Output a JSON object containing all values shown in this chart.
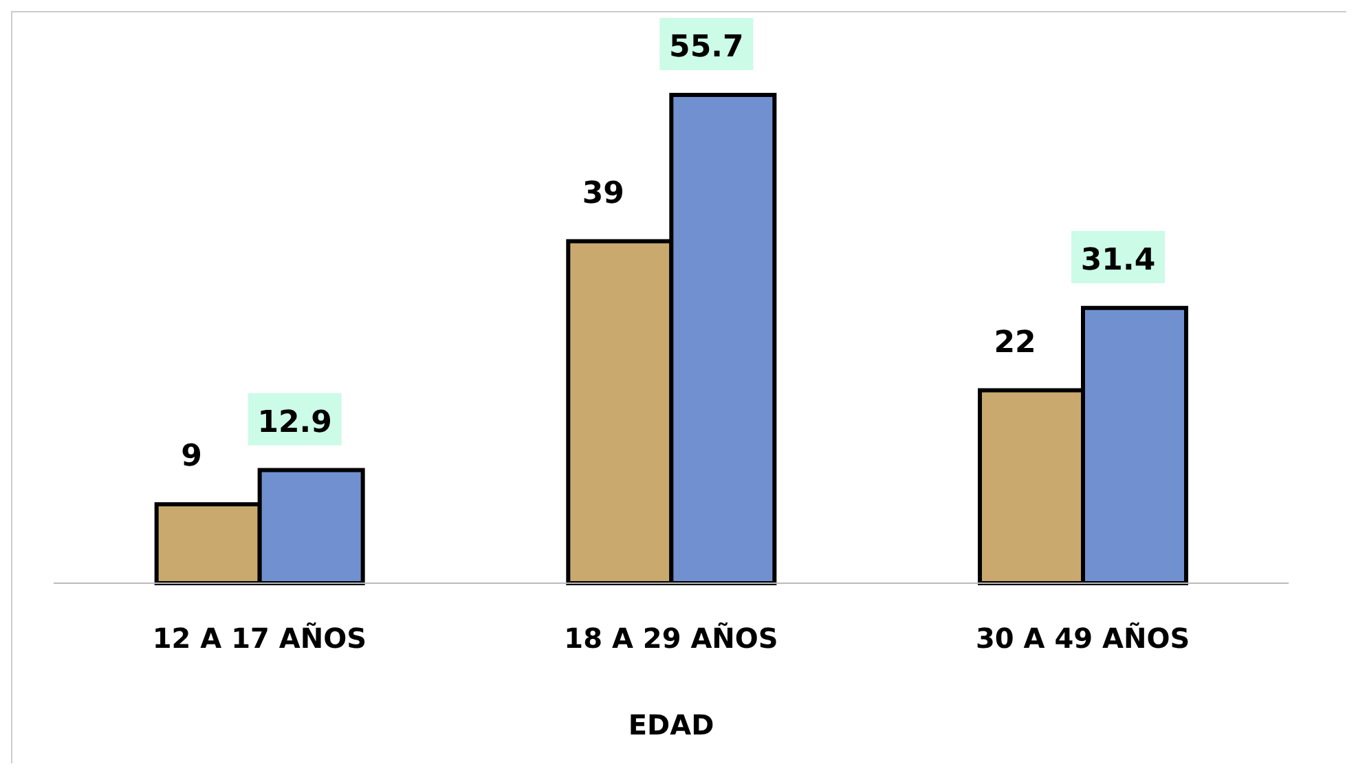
{
  "chart_data": {
    "type": "bar",
    "xlabel": "EDAD",
    "categories": [
      "12 A 17 AÑOS",
      "18 A 29 AÑOS",
      "30 A 49 AÑOS"
    ],
    "series": [
      {
        "color": "#c9a96e",
        "values": [
          9,
          39,
          22
        ]
      },
      {
        "color": "#7090d0",
        "values": [
          12.9,
          55.7,
          31.4
        ]
      }
    ],
    "data_labels": true,
    "grid": false,
    "legend": false
  }
}
